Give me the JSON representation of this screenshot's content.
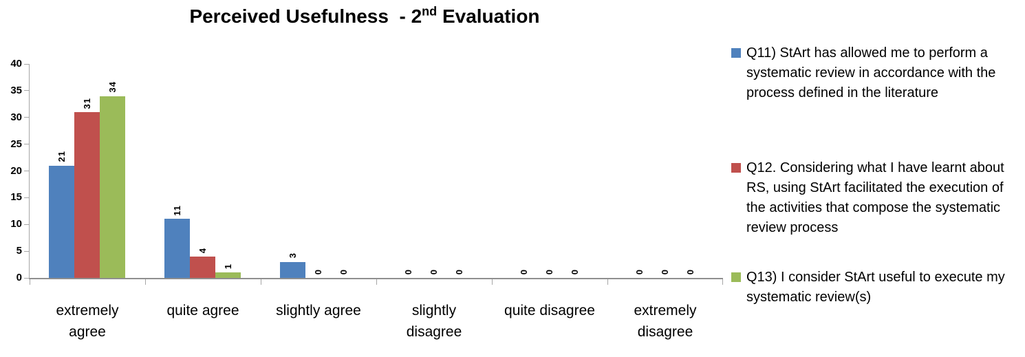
{
  "title": {
    "text": "Perceived Usefulness - 2nd Evaluation",
    "prefix": "Perceived Usefulness  - 2",
    "superscript": "nd",
    "suffix": " Evaluation"
  },
  "chart_data": {
    "type": "bar",
    "title": "Perceived Usefulness - 2nd Evaluation",
    "categories": [
      "extremely agree",
      "quite agree",
      "slightly agree",
      "slightly disagree",
      "quite disagree",
      "extremely disagree"
    ],
    "category_label_lines": [
      [
        "extremely",
        "agree"
      ],
      [
        "quite agree"
      ],
      [
        "slightly agree"
      ],
      [
        "slightly",
        "disagree"
      ],
      [
        "quite disagree"
      ],
      [
        "extremely",
        "disagree"
      ]
    ],
    "series": [
      {
        "key": "q11",
        "name": "Q11) StArt has allowed me to perform a systematic review in accordance with the process defined in the literature",
        "color": "#4F81BD",
        "values": [
          21,
          11,
          3,
          0,
          0,
          0
        ]
      },
      {
        "key": "q12",
        "name": "Q12. Considering what I have learnt about RS, using StArt facilitated the execution of the activities that compose the systematic review process",
        "color": "#C0504D",
        "values": [
          31,
          4,
          0,
          0,
          0,
          0
        ]
      },
      {
        "key": "q13",
        "name": "Q13) I consider StArt useful to execute my systematic review(s)",
        "color": "#9BBB59",
        "values": [
          34,
          1,
          0,
          0,
          0,
          0
        ]
      }
    ],
    "ylim": [
      0,
      40
    ],
    "yticks": [
      0,
      5,
      10,
      15,
      20,
      25,
      30,
      35,
      40
    ],
    "grid": false,
    "legend_position": "right",
    "data_labels": {
      "show": true,
      "rotation": -90
    }
  },
  "colors": {
    "axis": "#A6A6A6",
    "series_blue": "#4F81BD",
    "series_red": "#C0504D",
    "series_green": "#9BBB59"
  }
}
